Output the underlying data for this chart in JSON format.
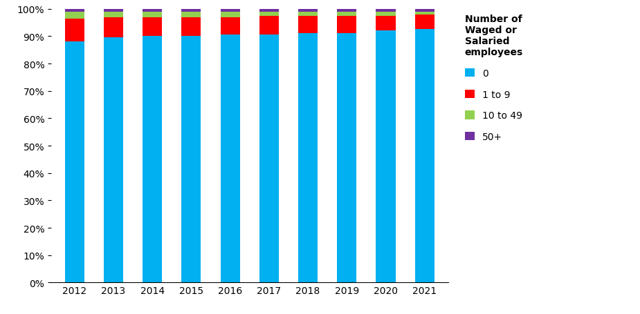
{
  "years": [
    2012,
    2013,
    2014,
    2015,
    2016,
    2017,
    2018,
    2019,
    2020,
    2021
  ],
  "series": {
    "0": [
      88.0,
      89.5,
      90.0,
      90.0,
      90.5,
      90.5,
      91.0,
      91.0,
      92.0,
      92.5
    ],
    "1 to 9": [
      8.5,
      7.5,
      7.0,
      7.0,
      6.5,
      7.0,
      6.5,
      6.5,
      5.5,
      5.5
    ],
    "10 to 49": [
      2.5,
      2.0,
      2.0,
      2.0,
      2.0,
      1.5,
      1.5,
      1.5,
      1.5,
      1.0
    ],
    "50+": [
      1.0,
      1.0,
      1.0,
      1.0,
      1.0,
      1.0,
      1.0,
      1.0,
      1.0,
      1.0
    ]
  },
  "colors": {
    "0": "#00b0f0",
    "1 to 9": "#ff0000",
    "10 to 49": "#92d050",
    "50+": "#7030a0"
  },
  "legend_title": "Number of\nWaged or\nSalaried\nemployees",
  "legend_labels": [
    "0",
    "1 to 9",
    "10 to 49",
    "50+"
  ],
  "ylim": [
    0,
    100
  ],
  "bar_width": 0.5,
  "background_color": "#ffffff",
  "tick_label_fontsize": 10,
  "legend_fontsize": 10,
  "legend_title_fontsize": 10
}
